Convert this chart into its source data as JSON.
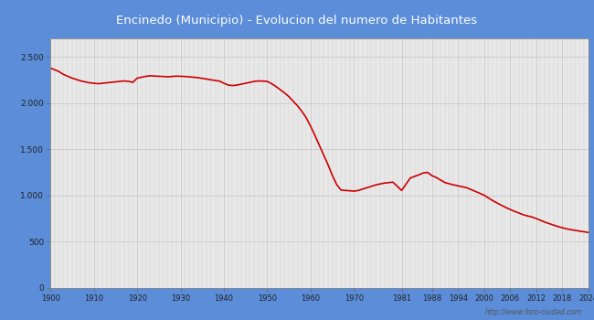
{
  "title": "Encinedo (Municipio) - Evolucion del numero de Habitantes",
  "title_color": "#ffffff",
  "header_bg_color": "#5b8dd9",
  "plot_bg_color": "#e8e8e8",
  "outer_bg_color": "#5b8dd9",
  "line_color": "#cc0000",
  "line_width": 1.2,
  "watermark": "http://www.foro-ciudad.com",
  "years": [
    1900,
    1901,
    1902,
    1903,
    1904,
    1905,
    1906,
    1907,
    1908,
    1909,
    1910,
    1911,
    1912,
    1913,
    1914,
    1915,
    1916,
    1917,
    1918,
    1919,
    1920,
    1921,
    1922,
    1923,
    1924,
    1925,
    1926,
    1927,
    1928,
    1929,
    1930,
    1931,
    1932,
    1933,
    1934,
    1935,
    1936,
    1937,
    1938,
    1939,
    1940,
    1941,
    1942,
    1943,
    1944,
    1945,
    1946,
    1947,
    1948,
    1949,
    1950,
    1951,
    1952,
    1953,
    1954,
    1955,
    1956,
    1957,
    1958,
    1959,
    1960,
    1961,
    1962,
    1963,
    1964,
    1965,
    1966,
    1967,
    1968,
    1969,
    1970,
    1971,
    1972,
    1973,
    1974,
    1975,
    1976,
    1977,
    1978,
    1979,
    1981,
    1983,
    1985,
    1986,
    1987,
    1988,
    1989,
    1991,
    1993,
    1994,
    1995,
    1996,
    1997,
    1998,
    1999,
    2000,
    2001,
    2002,
    2003,
    2004,
    2005,
    2006,
    2007,
    2008,
    2009,
    2010,
    2011,
    2012,
    2013,
    2014,
    2015,
    2016,
    2017,
    2018,
    2019,
    2020,
    2021,
    2022,
    2023,
    2024
  ],
  "population": [
    2380,
    2360,
    2340,
    2310,
    2290,
    2270,
    2255,
    2240,
    2230,
    2220,
    2215,
    2210,
    2215,
    2220,
    2225,
    2230,
    2235,
    2240,
    2235,
    2225,
    2270,
    2280,
    2290,
    2295,
    2293,
    2290,
    2288,
    2285,
    2288,
    2292,
    2290,
    2288,
    2284,
    2280,
    2275,
    2268,
    2260,
    2252,
    2245,
    2238,
    2215,
    2195,
    2190,
    2195,
    2205,
    2215,
    2225,
    2235,
    2240,
    2238,
    2235,
    2210,
    2180,
    2145,
    2110,
    2070,
    2020,
    1970,
    1910,
    1840,
    1750,
    1650,
    1545,
    1440,
    1335,
    1220,
    1120,
    1060,
    1055,
    1052,
    1048,
    1055,
    1070,
    1085,
    1100,
    1115,
    1125,
    1135,
    1140,
    1145,
    1055,
    1190,
    1225,
    1245,
    1250,
    1215,
    1195,
    1140,
    1115,
    1105,
    1095,
    1085,
    1065,
    1045,
    1025,
    1005,
    975,
    945,
    920,
    895,
    872,
    850,
    830,
    812,
    793,
    780,
    769,
    752,
    733,
    713,
    697,
    681,
    666,
    652,
    641,
    631,
    624,
    616,
    609,
    601
  ],
  "xticks": [
    1900,
    1910,
    1920,
    1930,
    1940,
    1950,
    1960,
    1970,
    1981,
    1988,
    1994,
    2000,
    2006,
    2012,
    2018,
    2024
  ],
  "yticks": [
    0,
    500,
    1000,
    1500,
    2000,
    2500
  ],
  "ytick_labels": [
    "0",
    "500",
    "1.000",
    "1.500",
    "2.000",
    "2.500"
  ],
  "ylim": [
    0,
    2700
  ],
  "xlim": [
    1900,
    2024
  ]
}
